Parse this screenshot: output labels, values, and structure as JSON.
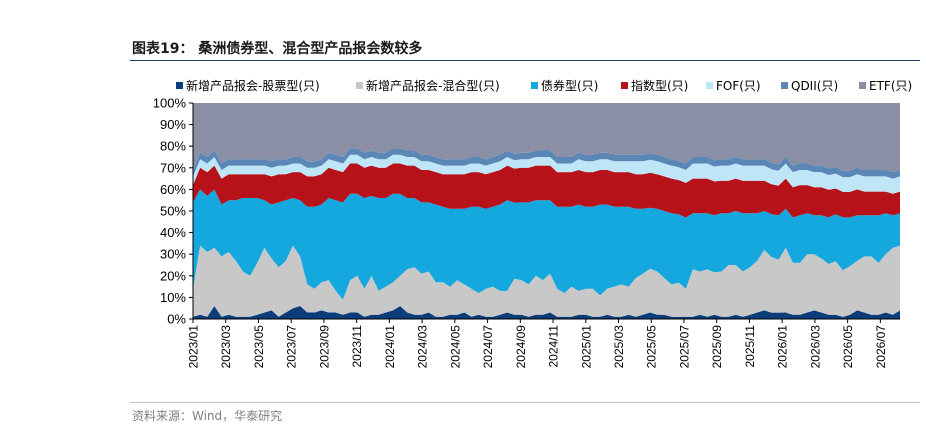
{
  "figure_title": "图表19：  桑洲债券型、混合型产品报会数较多",
  "source_note": "资料来源：Wind，华泰研究",
  "chart_data": {
    "type": "area",
    "stacked": true,
    "percent": true,
    "title": "",
    "xlabel": "",
    "ylabel": "",
    "ylim": [
      0,
      100
    ],
    "y_ticks": [
      "0%",
      "10%",
      "20%",
      "30%",
      "40%",
      "50%",
      "60%",
      "70%",
      "80%",
      "90%",
      "100%"
    ],
    "x_ticks": [
      "2023/01",
      "2023/03",
      "2023/05",
      "2023/07",
      "2023/09",
      "2023/11",
      "2024/01",
      "2024/03",
      "2024/05",
      "2024/07",
      "2024/09",
      "2024/11",
      "2025/01",
      "2025/03",
      "2025/05",
      "2025/07",
      "2025/09",
      "2025/11",
      "2026/01",
      "2026/03",
      "2026/05",
      "2026/07"
    ],
    "grid": false,
    "legend_position": "top",
    "series": [
      {
        "name": "新增产品报会-股票型(只)",
        "color": "#0b3d7a",
        "values": [
          1,
          2,
          1,
          6,
          1,
          2,
          1,
          1,
          1,
          2,
          3,
          4,
          1,
          3,
          5,
          6,
          3,
          3,
          4,
          3,
          3,
          2,
          3,
          3,
          1,
          2,
          2,
          3,
          4,
          6,
          3,
          2,
          2,
          3,
          1,
          1,
          2,
          2,
          3,
          1,
          2,
          1,
          1,
          2,
          3,
          2,
          2,
          1,
          2,
          2,
          3,
          1,
          1,
          1,
          2,
          2,
          1,
          1,
          2,
          1,
          1,
          2,
          1,
          2,
          3,
          2,
          2,
          1,
          1,
          1,
          1,
          2,
          1,
          2,
          1,
          1,
          2,
          1,
          2,
          3,
          4,
          3,
          3,
          3,
          2,
          2,
          3,
          4,
          3,
          2,
          2,
          1,
          2,
          4,
          3,
          2,
          2,
          3,
          2,
          4
        ]
      },
      {
        "name": "新增产品报会-混合型(只)",
        "color": "#c8c8c8",
        "values": [
          13,
          32,
          30,
          27,
          28,
          29,
          26,
          21,
          19,
          24,
          30,
          24,
          23,
          24,
          29,
          23,
          13,
          11,
          13,
          15,
          10,
          7,
          15,
          17,
          13,
          18,
          11,
          12,
          13,
          14,
          20,
          22,
          19,
          19,
          16,
          16,
          13,
          16,
          13,
          13,
          10,
          13,
          14,
          11,
          10,
          17,
          16,
          15,
          18,
          16,
          18,
          13,
          11,
          14,
          11,
          12,
          13,
          10,
          12,
          14,
          15,
          13,
          18,
          19,
          20,
          20,
          17,
          15,
          16,
          13,
          22,
          20,
          22,
          20,
          21,
          24,
          23,
          21,
          22,
          24,
          28,
          26,
          25,
          30,
          24,
          24,
          27,
          26,
          25,
          24,
          25,
          22,
          23,
          23,
          26,
          27,
          24,
          27,
          31,
          30
        ]
      },
      {
        "name": "债券型(只)",
        "color": "#14a8df",
        "values": [
          40,
          26,
          26,
          27,
          24,
          24,
          28,
          34,
          36,
          30,
          22,
          25,
          30,
          28,
          22,
          26,
          36,
          38,
          36,
          38,
          42,
          45,
          40,
          38,
          42,
          37,
          43,
          41,
          41,
          38,
          33,
          32,
          33,
          32,
          36,
          35,
          36,
          33,
          35,
          38,
          40,
          37,
          37,
          40,
          42,
          36,
          36,
          38,
          35,
          37,
          34,
          38,
          40,
          37,
          40,
          38,
          38,
          42,
          39,
          37,
          36,
          37,
          32,
          30,
          28,
          29,
          31,
          33,
          32,
          33,
          26,
          27,
          26,
          27,
          27,
          24,
          25,
          27,
          25,
          22,
          18,
          20,
          21,
          18,
          21,
          22,
          19,
          18,
          20,
          22,
          22,
          25,
          23,
          21,
          19,
          19,
          22,
          19,
          15,
          15
        ]
      },
      {
        "name": "指数型(只)",
        "color": "#b71119",
        "values": [
          8,
          10,
          11,
          11,
          12,
          12,
          12,
          11,
          11,
          11,
          12,
          13,
          13,
          12,
          12,
          13,
          14,
          14,
          14,
          14,
          14,
          14,
          14,
          14,
          14,
          14,
          14,
          14,
          14,
          14,
          15,
          15,
          15,
          15,
          15,
          15,
          16,
          16,
          16,
          16,
          16,
          16,
          16,
          16,
          16,
          16,
          16,
          16,
          16,
          16,
          16,
          16,
          16,
          16,
          16,
          16,
          16,
          16,
          16,
          16,
          16,
          16,
          16,
          16,
          16,
          16,
          16,
          16,
          16,
          16,
          16,
          16,
          16,
          16,
          15,
          15,
          15,
          15,
          15,
          15,
          14,
          14,
          14,
          14,
          14,
          14,
          13,
          13,
          13,
          13,
          12,
          12,
          12,
          12,
          11,
          11,
          11,
          10,
          10,
          10
        ]
      },
      {
        "name": "FOF(只)",
        "color": "#bfe6f7",
        "values": [
          4,
          4,
          4,
          4,
          4,
          4,
          4,
          4,
          4,
          4,
          4,
          4,
          4,
          4,
          4,
          4,
          4,
          4,
          4,
          4,
          4,
          4,
          4,
          4,
          4,
          4,
          4,
          4,
          4,
          4,
          4,
          4,
          4,
          4,
          4,
          4,
          4,
          4,
          4,
          4,
          4,
          4,
          4,
          4,
          4,
          4,
          4,
          4,
          4,
          4,
          4,
          4,
          4,
          4,
          5,
          5,
          5,
          5,
          5,
          5,
          5,
          5,
          6,
          6,
          6,
          6,
          6,
          6,
          6,
          6,
          7,
          7,
          7,
          7,
          7,
          7,
          7,
          7,
          7,
          7,
          7,
          7,
          7,
          7,
          7,
          7,
          7,
          7,
          7,
          7,
          7,
          7,
          7,
          7,
          7,
          7,
          7,
          7,
          7,
          7
        ]
      },
      {
        "name": "QDII(只)",
        "color": "#5b87b6",
        "values": [
          3,
          3,
          3,
          3,
          3,
          3,
          3,
          3,
          3,
          3,
          3,
          3,
          3,
          3,
          3,
          3,
          3,
          3,
          3,
          3,
          3,
          3,
          3,
          3,
          3,
          3,
          3,
          3,
          3,
          3,
          3,
          3,
          3,
          3,
          3,
          3,
          3,
          3,
          3,
          3,
          3,
          3,
          3,
          3,
          3,
          3,
          3,
          3,
          3,
          3,
          3,
          3,
          3,
          3,
          3,
          3,
          3,
          3,
          3,
          3,
          3,
          3,
          3,
          3,
          3,
          3,
          3,
          3,
          3,
          3,
          3,
          3,
          3,
          3,
          3,
          3,
          3,
          3,
          3,
          3,
          3,
          3,
          3,
          3,
          3,
          3,
          3,
          3,
          3,
          3,
          3,
          3,
          3,
          3,
          3,
          3,
          3,
          3,
          3,
          3
        ]
      },
      {
        "name": "ETF(只)",
        "color": "#8b8fa6",
        "values": [
          31,
          23,
          25,
          22,
          28,
          26,
          26,
          26,
          26,
          26,
          26,
          27,
          26,
          26,
          25,
          25,
          27,
          27,
          26,
          23,
          24,
          25,
          21,
          21,
          23,
          22,
          23,
          23,
          21,
          21,
          22,
          22,
          24,
          24,
          25,
          26,
          26,
          26,
          26,
          25,
          25,
          26,
          25,
          24,
          22,
          24,
          23,
          23,
          22,
          22,
          22,
          25,
          25,
          25,
          23,
          24,
          24,
          23,
          23,
          24,
          24,
          24,
          24,
          24,
          23,
          24,
          25,
          26,
          27,
          28,
          25,
          25,
          25,
          27,
          26,
          26,
          25,
          26,
          26,
          26,
          26,
          28,
          29,
          25,
          29,
          28,
          28,
          29,
          29,
          31,
          30,
          32,
          32,
          30,
          31,
          31,
          31,
          31,
          32,
          31
        ]
      }
    ]
  }
}
